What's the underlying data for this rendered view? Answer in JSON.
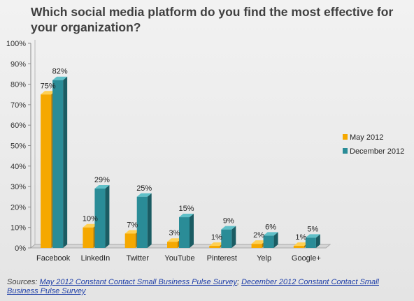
{
  "chart_data": {
    "type": "bar",
    "title": "Which social media platform do you find the most effective for your organization?",
    "categories": [
      "Facebook",
      "LinkedIn",
      "Twitter",
      "YouTube",
      "Pinterest",
      "Yelp",
      "Google+"
    ],
    "series": [
      {
        "name": "May 2012",
        "values": [
          75,
          10,
          7,
          3,
          1,
          2,
          1
        ],
        "labels": [
          "75%",
          "10%",
          "7%",
          "3%",
          "1%",
          "2%",
          "1%"
        ]
      },
      {
        "name": "December 2012",
        "values": [
          82,
          29,
          25,
          15,
          9,
          6,
          5
        ],
        "labels": [
          "82%",
          "29%",
          "25%",
          "15%",
          "9%",
          "6%",
          "5%"
        ]
      }
    ],
    "yticks": [
      "0%",
      "10%",
      "20%",
      "30%",
      "40%",
      "50%",
      "60%",
      "70%",
      "80%",
      "90%",
      "100%"
    ],
    "ylim": [
      0,
      100
    ],
    "legend_position": "right",
    "grid": false,
    "style": "3d-clustered-column"
  },
  "colors": {
    "may_front": "#f5a800",
    "may_side": "#b57a00",
    "may_top": "#ffd053",
    "dec_front": "#2a8c97",
    "dec_side": "#1b5c63",
    "dec_top": "#5fc0c8"
  },
  "sources": {
    "prefix": "Sources: ",
    "link1": "May 2012 Constant Contact Small Business Pulse Survey",
    "separator": "; ",
    "link2": "December 2012 Constant Contact Small Business Pulse Survey"
  }
}
